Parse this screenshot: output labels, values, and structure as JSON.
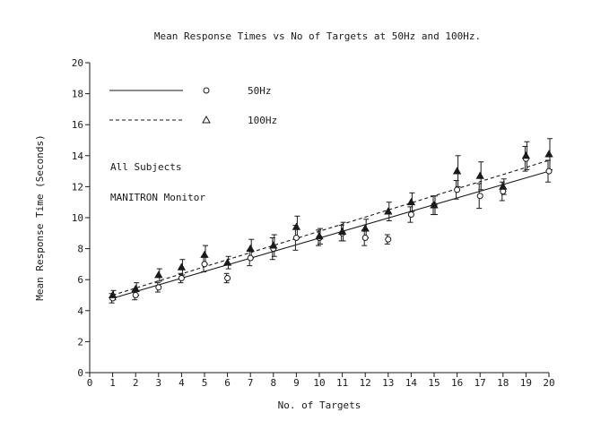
{
  "chart_data": {
    "type": "scatter",
    "title": "Mean Response Times vs No of Targets at 50Hz and 100Hz.",
    "xlabel": "No. of Targets",
    "ylabel": "Mean Response Time (Seconds)",
    "xlim": [
      0,
      20
    ],
    "ylim": [
      0,
      20
    ],
    "xticks": [
      "0",
      "1",
      "2",
      "3",
      "4",
      "5",
      "6",
      "7",
      "8",
      "9",
      "10",
      "11",
      "12",
      "13",
      "14",
      "15",
      "16",
      "17",
      "18",
      "19",
      "20"
    ],
    "yticks": [
      "0",
      "2",
      "4",
      "6",
      "8",
      "10",
      "12",
      "14",
      "16",
      "18",
      "20"
    ],
    "grid": false,
    "annotations": [
      "All Subjects",
      "MANITRON Monitor"
    ],
    "legend": {
      "position": "top-left",
      "entries": [
        {
          "label": "50Hz",
          "line": "solid",
          "marker": "o"
        },
        {
          "label": "100Hz",
          "line": "dashed",
          "marker": "Δ"
        }
      ]
    },
    "x": [
      1,
      2,
      3,
      4,
      5,
      6,
      7,
      8,
      9,
      10,
      11,
      12,
      13,
      14,
      15,
      16,
      17,
      18,
      19,
      20
    ],
    "series": [
      {
        "name": "50Hz",
        "marker": "circle",
        "line": "solid",
        "values": [
          4.8,
          5.0,
          5.5,
          6.1,
          7.0,
          6.1,
          7.4,
          8.0,
          8.7,
          8.7,
          9.0,
          8.7,
          8.6,
          10.2,
          10.8,
          11.8,
          11.4,
          11.7,
          13.8,
          13.0
        ],
        "err": [
          0.3,
          0.3,
          0.3,
          0.3,
          0.5,
          0.3,
          0.5,
          0.7,
          0.8,
          0.5,
          0.5,
          0.5,
          0.3,
          0.5,
          0.6,
          0.6,
          0.8,
          0.6,
          0.8,
          0.7
        ],
        "fit": [
          [
            1,
            4.8
          ],
          [
            20,
            13.0
          ]
        ]
      },
      {
        "name": "100Hz",
        "marker": "triangle",
        "line": "dashed",
        "values": [
          5.0,
          5.4,
          6.3,
          6.8,
          7.6,
          7.1,
          8.0,
          8.2,
          9.4,
          8.8,
          9.1,
          9.3,
          10.4,
          11.0,
          10.8,
          13.0,
          12.7,
          12.0,
          14.0,
          14.1
        ],
        "err": [
          0.3,
          0.4,
          0.4,
          0.5,
          0.6,
          0.4,
          0.6,
          0.7,
          0.7,
          0.5,
          0.6,
          0.6,
          0.6,
          0.6,
          0.6,
          1.0,
          0.9,
          0.5,
          0.9,
          1.0
        ],
        "fit": [
          [
            1,
            5.0
          ],
          [
            20,
            13.7
          ]
        ]
      }
    ]
  }
}
